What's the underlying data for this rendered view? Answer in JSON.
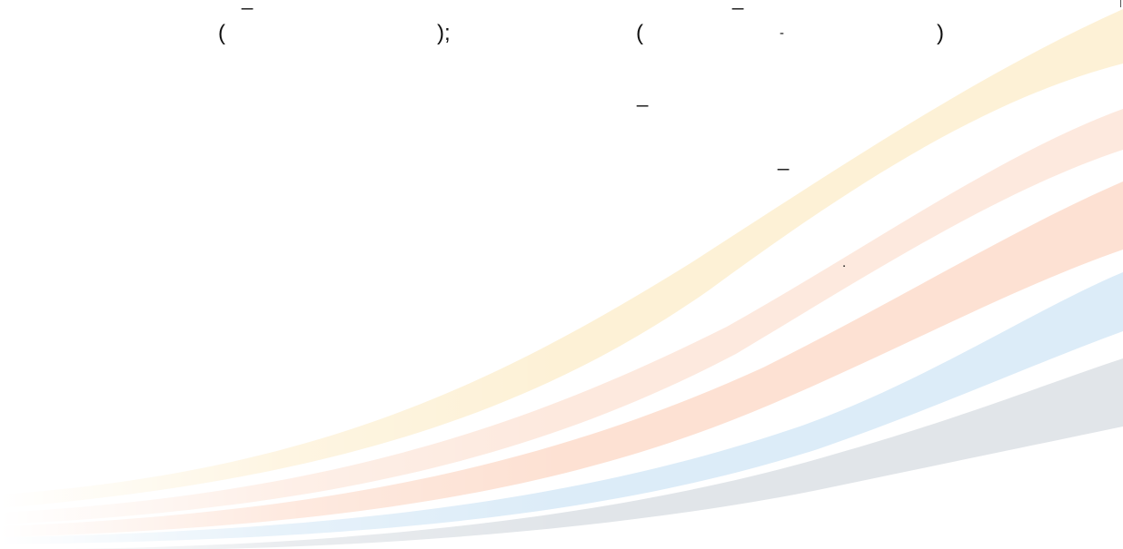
{
  "text_fragments": {
    "dash_top_left": "_",
    "dash_top_mid": "_",
    "paren_open_1": "(",
    "paren_close_semicolon": ");",
    "paren_open_2": "(",
    "hyphen_mid": "-",
    "paren_close_2": ")",
    "dash_mid": "_",
    "dash_lower": "_",
    "dot": "."
  },
  "background": {
    "wave_colors": [
      "#fdf1d6",
      "#fde8dc",
      "#fde3d6",
      "#dfeef9",
      "#e3e6ea"
    ]
  }
}
